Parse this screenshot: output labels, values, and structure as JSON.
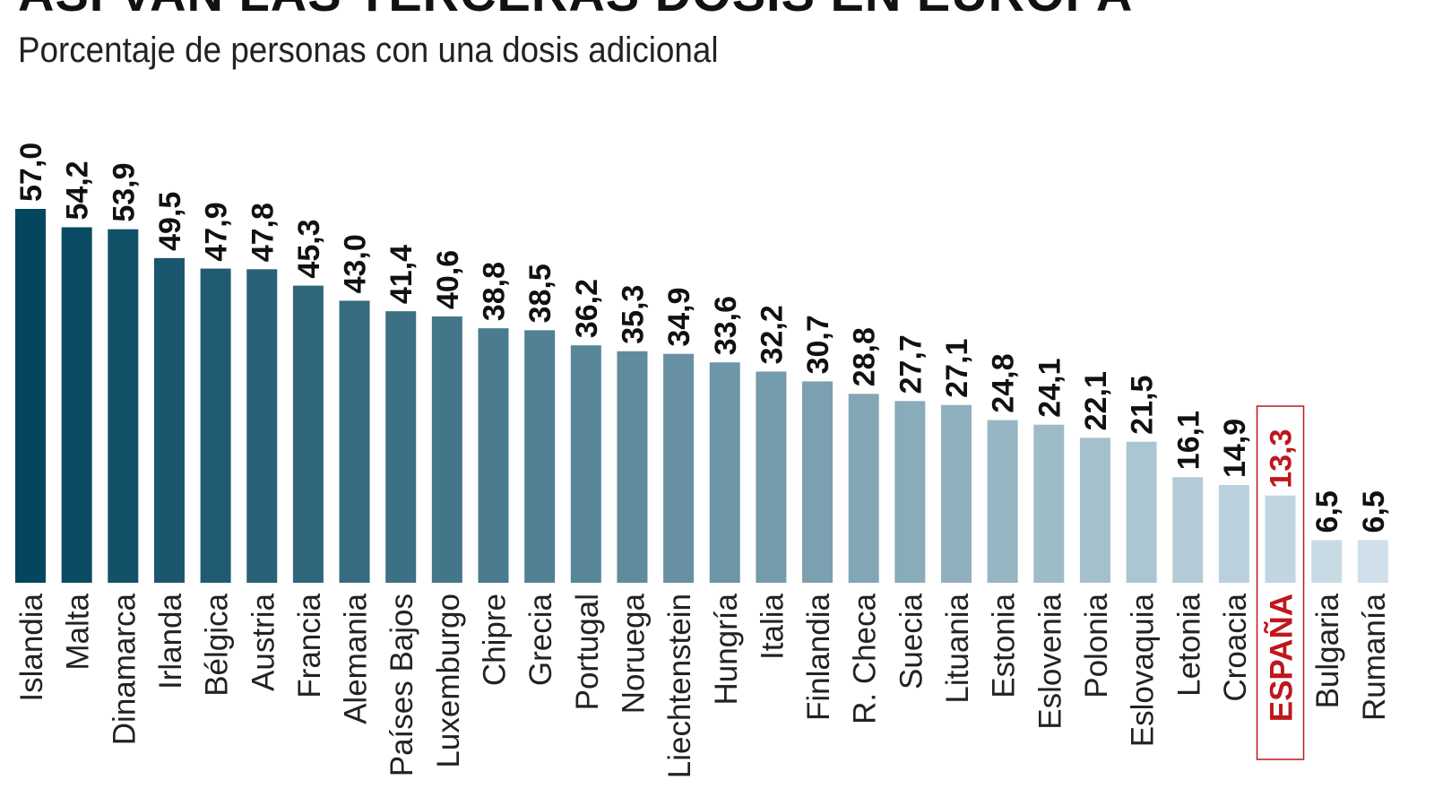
{
  "chart_data": {
    "type": "bar",
    "title": "ASÍ VAN LAS TERCERAS DOSIS EN EUROPA",
    "subtitle": "Porcentaje de personas con una dosis adicional",
    "xlabel": "",
    "ylabel": "",
    "ylim": [
      0,
      57
    ],
    "grid": false,
    "highlight": "ESPAÑA",
    "highlight_color": "#c0161d",
    "color_dark": "#05465f",
    "color_light": "#cfe0ea",
    "categories": [
      "Islandia",
      "Malta",
      "Dinamarca",
      "Irlanda",
      "Bélgica",
      "Austria",
      "Francia",
      "Alemania",
      "Países Bajos",
      "Luxemburgo",
      "Chipre",
      "Grecia",
      "Portugal",
      "Noruega",
      "Liechtenstein",
      "Hungría",
      "Italia",
      "Finlandia",
      "R. Checa",
      "Suecia",
      "Lituania",
      "Estonia",
      "Eslovenia",
      "Polonia",
      "Eslovaquia",
      "Letonia",
      "Croacia",
      "ESPAÑA",
      "Bulgaria",
      "Rumanía"
    ],
    "values": [
      57.0,
      54.2,
      53.9,
      49.5,
      47.9,
      47.8,
      45.3,
      43.0,
      41.4,
      40.6,
      38.8,
      38.5,
      36.2,
      35.3,
      34.9,
      33.6,
      32.2,
      30.7,
      28.8,
      27.7,
      27.1,
      24.8,
      24.1,
      22.1,
      21.5,
      16.1,
      14.9,
      13.3,
      6.5,
      6.5
    ],
    "labels": [
      "57,0",
      "54,2",
      "53,9",
      "49,5",
      "47,9",
      "47,8",
      "45,3",
      "43,0",
      "41,4",
      "40,6",
      "38,8",
      "38,5",
      "36,2",
      "35,3",
      "34,9",
      "33,6",
      "32,2",
      "30,7",
      "28,8",
      "27,7",
      "27,1",
      "24,8",
      "24,1",
      "22,1",
      "21,5",
      "16,1",
      "14,9",
      "13,3",
      "6,5",
      "6,5"
    ]
  }
}
